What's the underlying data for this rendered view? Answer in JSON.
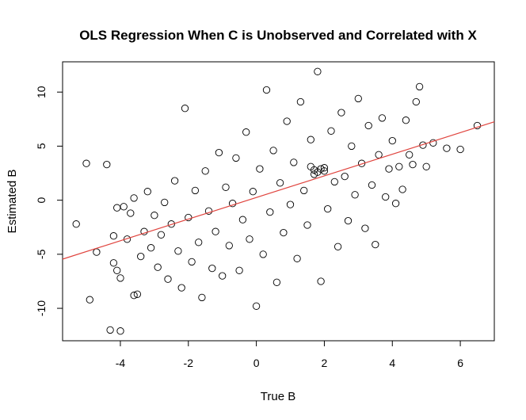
{
  "chart_data": {
    "type": "scatter",
    "title": "OLS Regression When C is Unobserved and Correlated with X",
    "xlabel": "True B",
    "ylabel": "Estimated B",
    "xlim": [
      -5.7,
      7.0
    ],
    "ylim": [
      -13.0,
      12.8
    ],
    "xticks": [
      -4,
      -2,
      0,
      2,
      4,
      6
    ],
    "yticks": [
      -10,
      -5,
      0,
      5,
      10
    ],
    "grid": false,
    "legend": "none",
    "colors": {
      "points": "#000000",
      "regression_line": "#e0443e"
    },
    "regression_line": {
      "intercept": 0.25,
      "slope": 1.0
    },
    "series": [
      {
        "values": [
          [
            -5.3,
            -2.2
          ],
          [
            -5.0,
            3.4
          ],
          [
            -4.9,
            -9.2
          ],
          [
            -4.7,
            -4.8
          ],
          [
            -4.4,
            3.3
          ],
          [
            -4.3,
            -12.0
          ],
          [
            -4.0,
            -12.1
          ],
          [
            -4.1,
            -0.7
          ],
          [
            -4.2,
            -3.3
          ],
          [
            -4.1,
            -6.5
          ],
          [
            -4.0,
            -7.2
          ],
          [
            -4.2,
            -5.8
          ],
          [
            -3.9,
            -0.6
          ],
          [
            -3.8,
            -3.6
          ],
          [
            -3.7,
            -1.2
          ],
          [
            -3.6,
            -8.8
          ],
          [
            -3.5,
            -8.7
          ],
          [
            -3.6,
            0.2
          ],
          [
            -3.4,
            -5.2
          ],
          [
            -3.3,
            -2.9
          ],
          [
            -3.2,
            0.8
          ],
          [
            -3.1,
            -4.4
          ],
          [
            -3.0,
            -1.4
          ],
          [
            -2.9,
            -6.2
          ],
          [
            -2.8,
            -3.2
          ],
          [
            -2.7,
            -0.2
          ],
          [
            -2.6,
            -7.3
          ],
          [
            -2.5,
            -2.2
          ],
          [
            -2.4,
            1.8
          ],
          [
            -2.3,
            -4.7
          ],
          [
            -2.2,
            -8.1
          ],
          [
            -2.1,
            8.5
          ],
          [
            -2.0,
            -1.6
          ],
          [
            -1.9,
            -5.7
          ],
          [
            -1.8,
            0.9
          ],
          [
            -1.7,
            -3.9
          ],
          [
            -1.6,
            -9.0
          ],
          [
            -1.5,
            2.7
          ],
          [
            -1.4,
            -1.0
          ],
          [
            -1.3,
            -6.3
          ],
          [
            -1.2,
            -2.9
          ],
          [
            -1.1,
            4.4
          ],
          [
            -1.0,
            -7.0
          ],
          [
            -0.9,
            1.2
          ],
          [
            -0.8,
            -4.2
          ],
          [
            -0.7,
            -0.3
          ],
          [
            -0.6,
            3.9
          ],
          [
            -0.5,
            -6.5
          ],
          [
            -0.4,
            -1.8
          ],
          [
            -0.3,
            6.3
          ],
          [
            -0.2,
            -3.6
          ],
          [
            -0.1,
            0.8
          ],
          [
            0.0,
            -9.8
          ],
          [
            0.1,
            2.9
          ],
          [
            0.2,
            -5.0
          ],
          [
            0.3,
            10.2
          ],
          [
            0.4,
            -1.1
          ],
          [
            0.5,
            4.6
          ],
          [
            0.6,
            -7.6
          ],
          [
            0.7,
            1.6
          ],
          [
            0.8,
            -3.0
          ],
          [
            0.9,
            7.3
          ],
          [
            1.0,
            -0.4
          ],
          [
            1.1,
            3.5
          ],
          [
            1.2,
            -5.4
          ],
          [
            1.3,
            9.1
          ],
          [
            1.4,
            0.9
          ],
          [
            1.5,
            -2.3
          ],
          [
            1.6,
            5.6
          ],
          [
            1.7,
            2.8
          ],
          [
            1.8,
            11.9
          ],
          [
            1.9,
            -7.5
          ],
          [
            2.0,
            3.0
          ],
          [
            2.1,
            -0.8
          ],
          [
            2.2,
            6.4
          ],
          [
            2.3,
            1.7
          ],
          [
            2.4,
            -4.3
          ],
          [
            2.5,
            8.1
          ],
          [
            2.6,
            2.2
          ],
          [
            2.7,
            -1.9
          ],
          [
            2.8,
            5.0
          ],
          [
            2.9,
            0.5
          ],
          [
            3.0,
            9.4
          ],
          [
            3.1,
            3.4
          ],
          [
            3.2,
            -2.6
          ],
          [
            3.3,
            6.9
          ],
          [
            3.4,
            1.4
          ],
          [
            3.5,
            -4.1
          ],
          [
            3.6,
            4.2
          ],
          [
            3.7,
            7.6
          ],
          [
            3.8,
            0.3
          ],
          [
            3.9,
            2.9
          ],
          [
            4.0,
            5.5
          ],
          [
            4.1,
            -0.3
          ],
          [
            4.2,
            3.1
          ],
          [
            4.3,
            1.0
          ],
          [
            4.4,
            7.4
          ],
          [
            4.5,
            4.2
          ],
          [
            4.6,
            3.3
          ],
          [
            4.7,
            9.1
          ],
          [
            4.8,
            10.5
          ],
          [
            4.9,
            5.1
          ],
          [
            5.0,
            3.1
          ],
          [
            5.2,
            5.3
          ],
          [
            5.6,
            4.8
          ],
          [
            6.0,
            4.7
          ],
          [
            6.5,
            6.9
          ],
          [
            1.8,
            2.6
          ],
          [
            1.9,
            2.9
          ],
          [
            2.0,
            2.7
          ],
          [
            1.6,
            3.1
          ],
          [
            1.7,
            2.4
          ]
        ]
      }
    ]
  }
}
